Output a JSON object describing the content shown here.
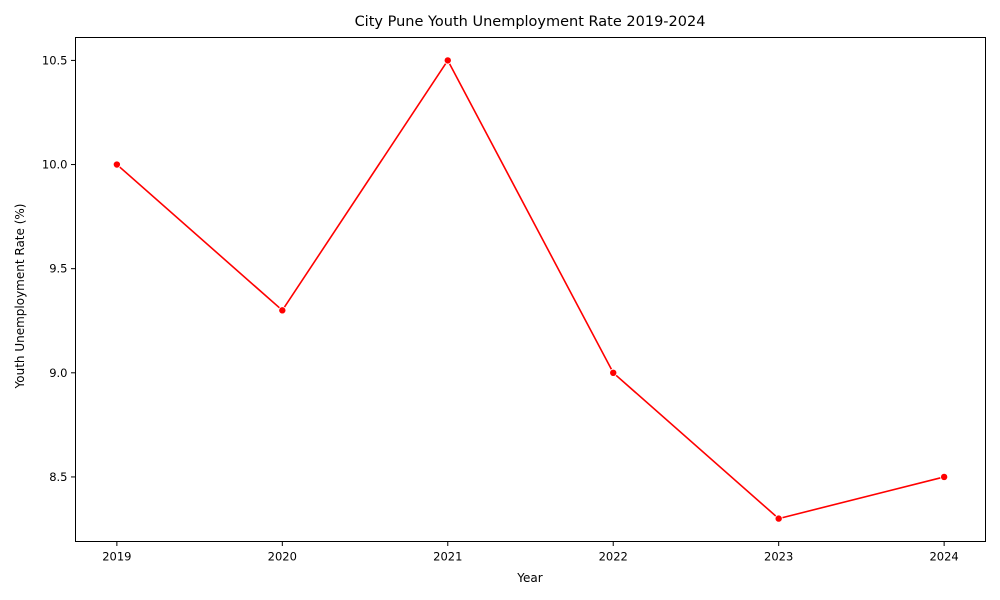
{
  "chart_data": {
    "type": "line",
    "title": "City Pune Youth Unemployment Rate 2019-2024",
    "xlabel": "Year",
    "ylabel": "Youth Unemployment Rate (%)",
    "x": [
      2019,
      2020,
      2021,
      2022,
      2023,
      2024
    ],
    "x_tick_labels": [
      "2019",
      "2020",
      "2021",
      "2022",
      "2023",
      "2024"
    ],
    "series": [
      {
        "values": [
          10.0,
          9.3,
          10.5,
          9.0,
          8.3,
          8.5
        ],
        "color": "#ff0000",
        "marker": "circle"
      }
    ],
    "y_ticks": [
      8.5,
      9.0,
      9.5,
      10.0,
      10.5
    ],
    "y_tick_labels": [
      "8.5",
      "9.0",
      "9.5",
      "10.0",
      "10.5"
    ],
    "xlim": [
      2018.75,
      2024.25
    ],
    "ylim": [
      8.19,
      10.61
    ],
    "grid": false,
    "legend": "none"
  }
}
